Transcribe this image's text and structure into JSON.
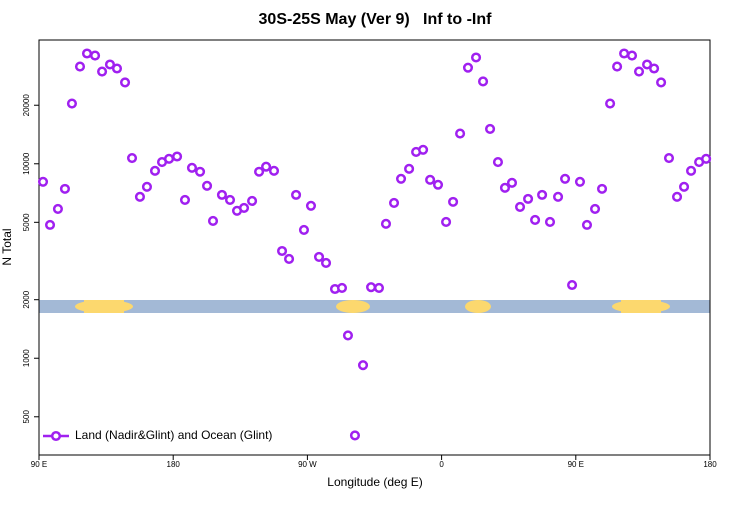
{
  "chart_data": {
    "type": "scatter",
    "title": "30S-25S May (Ver 9)   Inf to -Inf",
    "x_label": "Longitude (deg E)",
    "y_label": "N Total",
    "log_y": true,
    "legend_position": "bottom-left",
    "xlim": [
      90,
      540
    ],
    "xticks": [
      {
        "value": 90,
        "label": "90 E"
      },
      180,
      {
        "value": 270,
        "label": "90 W"
      },
      {
        "value": 360,
        "label": "0"
      },
      {
        "value": 450,
        "label": "90 E"
      },
      {
        "value": 540,
        "label": "180"
      }
    ],
    "ylim": [
      318,
      43300
    ],
    "yticks": [
      500,
      1000,
      2000,
      5000,
      10000,
      20000
    ],
    "series": [
      {
        "name": "Land (Nadir&Glint) and Ocean (Glint)",
        "color": "#a020f0",
        "x": [
          92.7,
          97.4,
          102.7,
          107.4,
          112.1,
          117.5,
          122.2,
          127.6,
          132.3,
          137.6,
          142.3,
          147.7,
          152.4,
          157.7,
          162.4,
          167.8,
          172.5,
          177.2,
          182.6,
          187.9,
          192.6,
          198,
          202.7,
          206.7,
          212.7,
          218.1,
          222.8,
          227.5,
          232.9,
          237.6,
          242.3,
          247.6,
          253,
          257.7,
          262.4,
          267.7,
          272.4,
          277.8,
          282.5,
          288.5,
          293.2,
          297.2,
          301.9,
          307.3,
          312.7,
          318,
          322.7,
          328.1,
          332.8,
          338.2,
          342.9,
          347.6,
          352.3,
          357.6,
          363,
          367.7,
          372.4,
          377.7,
          383.1,
          387.8,
          392.5,
          397.8,
          402.5,
          407.2,
          412.6,
          418,
          422.7,
          427.4,
          432.7,
          438.1,
          442.8,
          447.5,
          452.8,
          457.5,
          462.9,
          467.6,
          473,
          477.7,
          482.4,
          487.7,
          492.4,
          497.8,
          502.5,
          507.2,
          512.5,
          517.9,
          522.6,
          527.3,
          532.7,
          537.4
        ],
        "values": [
          8080,
          4850,
          5860,
          7430,
          20400,
          31600,
          36900,
          36000,
          29800,
          32400,
          30900,
          26200,
          10700,
          6760,
          7610,
          9200,
          10200,
          10600,
          10900,
          6520,
          9530,
          9100,
          7700,
          5080,
          6920,
          6520,
          5730,
          5930,
          6440,
          9100,
          9660,
          9200,
          3560,
          3240,
          6920,
          4570,
          6080,
          3320,
          3090,
          2270,
          2300,
          1310,
          401,
          921,
          2320,
          2300,
          4910,
          6290,
          8370,
          9420,
          11500,
          11800,
          8270,
          7800,
          5020,
          6370,
          14300,
          31200,
          35200,
          26500,
          15100,
          10200,
          7520,
          7980,
          6000,
          6600,
          5140,
          6920,
          5020,
          6760,
          8370,
          2380,
          8080,
          4850,
          5860,
          7430,
          20400,
          31600,
          36900,
          36000,
          29800,
          32400,
          30900,
          26200,
          10700,
          6760,
          7610,
          9200,
          10200,
          10600
        ]
      }
    ]
  }
}
